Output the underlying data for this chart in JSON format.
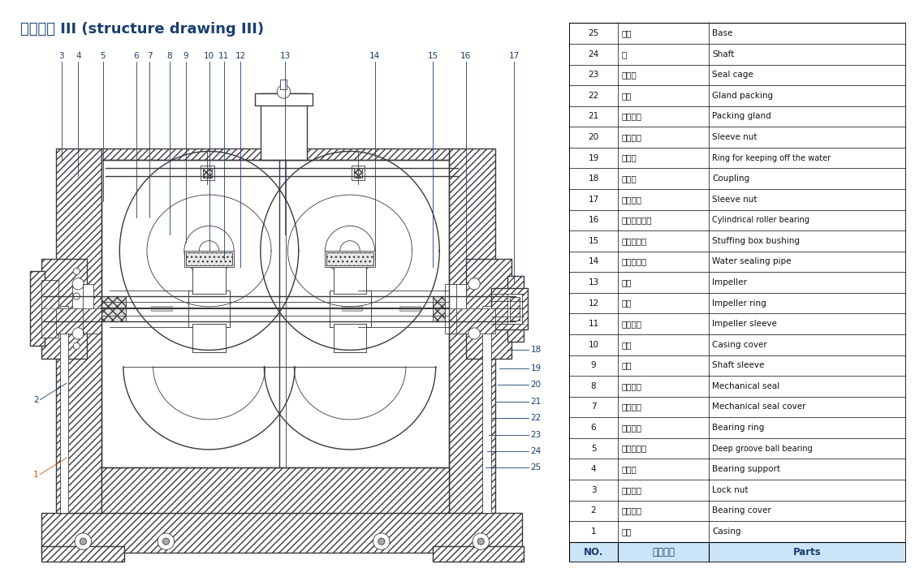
{
  "title_cn": "结构形式",
  "title_roman": "Ⅲ",
  "title_en": "(structure drawing Ⅲ)",
  "title_color": "#1a3e6e",
  "title_fontsize": 13,
  "background_color": "#ffffff",
  "table": {
    "header": [
      "NO.",
      "零件名称",
      "Parts"
    ],
    "header_bg": "#cce4f7",
    "header_text_color": "#1a3e6e",
    "border_color": "#000000",
    "rows": [
      [
        25,
        "底座",
        "Base"
      ],
      [
        24,
        "轴",
        "Shaft"
      ],
      [
        23,
        "填料环",
        "Seal cage"
      ],
      [
        22,
        "填料",
        "Gland packing"
      ],
      [
        21,
        "填料压盖",
        "Packing gland"
      ],
      [
        20,
        "轴套螺母",
        "Sleeve nut"
      ],
      [
        19,
        "挡水圈",
        "Ring for keeping off the water"
      ],
      [
        18,
        "联轴器",
        "Coupling"
      ],
      [
        17,
        "轴套螺母",
        "Sleeve nut"
      ],
      [
        16,
        "圆柱滚子轴承",
        "Cylindrical roller bearing"
      ],
      [
        15,
        "填料函衬套",
        "Stuffing box bushing"
      ],
      [
        14,
        "水封管部件",
        "Water sealing pipe"
      ],
      [
        13,
        "叶轮",
        "Impeller"
      ],
      [
        12,
        "口环",
        "Impeller ring"
      ],
      [
        11,
        "叶轮挡套",
        "Impeller sleeve"
      ],
      [
        10,
        "泵盖",
        "Casing cover"
      ],
      [
        9,
        "轴套",
        "Shaft sleeve"
      ],
      [
        8,
        "机械密封",
        "Mechanical seal"
      ],
      [
        7,
        "机封压盖",
        "Mechanical seal cover"
      ],
      [
        6,
        "轴承压环",
        "Bearing ring"
      ],
      [
        5,
        "深沟球轴承",
        "Deep groove ball bearing"
      ],
      [
        4,
        "轴承体",
        "Bearing support"
      ],
      [
        3,
        "锁紧螺母",
        "Lock nut"
      ],
      [
        2,
        "轴承压盖",
        "Bearing cover"
      ],
      [
        1,
        "泵体",
        "Casing"
      ]
    ]
  },
  "drawing_line_color": "#3a3a3a",
  "callout_color": "#1a3e6e",
  "orange_color": "#c8580a"
}
